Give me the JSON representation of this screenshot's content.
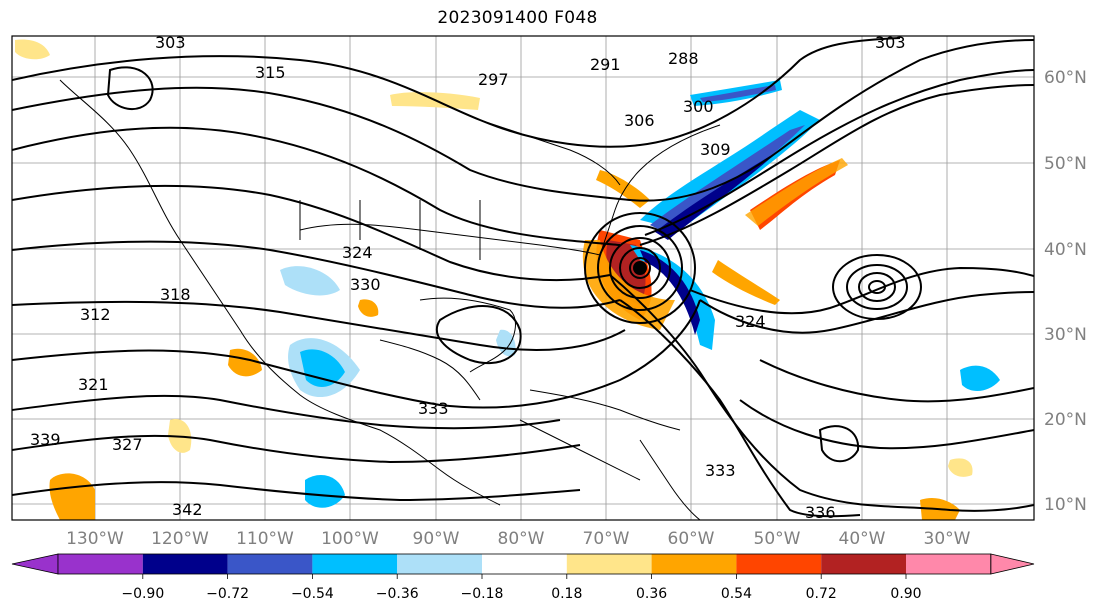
{
  "title": "2023091400 F048",
  "map": {
    "longitude_labels": [
      "130°W",
      "120°W",
      "110°W",
      "100°W",
      "90°W",
      "80°W",
      "70°W",
      "60°W",
      "50°W",
      "40°W",
      "30°W"
    ],
    "latitude_labels": [
      "60°N",
      "50°N",
      "40°N",
      "30°N",
      "20°N",
      "10°N"
    ],
    "contour_labels": [
      "303",
      "315",
      "297",
      "288",
      "291",
      "300",
      "306",
      "312",
      "309",
      "324",
      "330",
      "318",
      "321",
      "333",
      "339",
      "327",
      "342",
      "336",
      "303",
      "324",
      "333"
    ]
  },
  "colorbar": {
    "tick_labels": [
      "−0.90",
      "−0.72",
      "−0.54",
      "−0.36",
      "−0.18",
      "0.18",
      "0.36",
      "0.54",
      "0.72",
      "0.90"
    ],
    "colors": [
      "#9932cc",
      "#00008b",
      "#3a56c8",
      "#00bfff",
      "#ade0f8",
      "#ffffff",
      "#ffe58a",
      "#ffa500",
      "#ff4500",
      "#b22222",
      "#ff88aa"
    ]
  },
  "colors": {
    "frame": "#000000",
    "grid": "#9a9a9a",
    "coast": "#000000"
  }
}
